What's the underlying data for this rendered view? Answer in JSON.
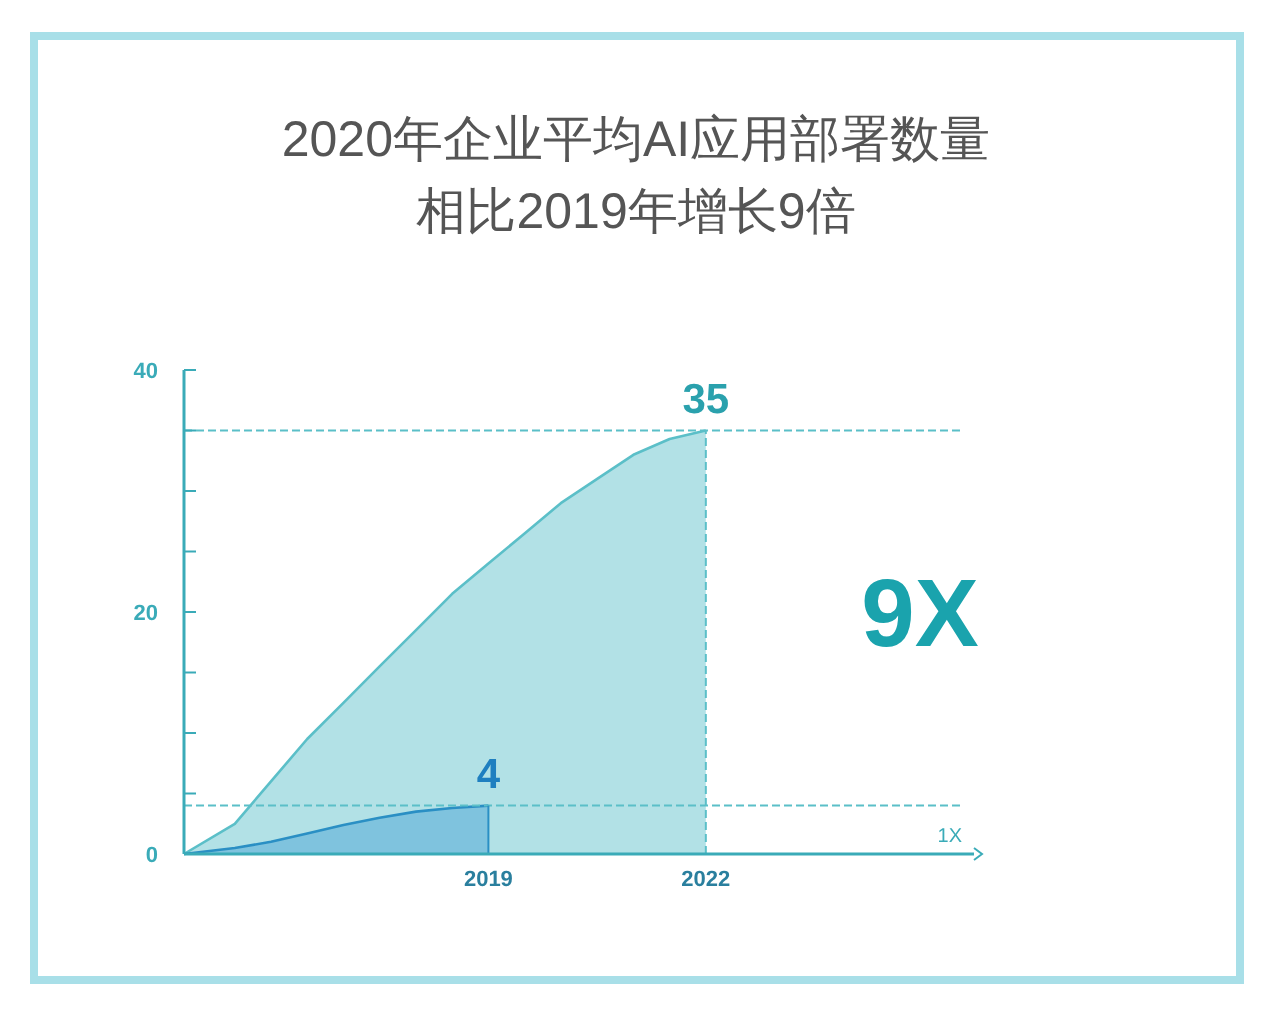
{
  "chart_data": {
    "type": "area",
    "title": "2020年企业平均AI应用部署数量",
    "subtitle": "相比2019年增长9倍",
    "xlim": [
      2014.8,
      2025.7
    ],
    "xticks": [
      2019,
      2022
    ],
    "ylim": [
      0,
      40
    ],
    "yticks": [
      0,
      {
        "value": 5,
        "label": null
      },
      {
        "value": 10,
        "label": null
      },
      {
        "value": 15,
        "label": null
      },
      20,
      {
        "value": 25,
        "label": null
      },
      {
        "value": 30,
        "label": null
      },
      {
        "value": 35,
        "label": null
      },
      40
    ],
    "series": [
      {
        "color": "#5bbfc8",
        "x": [
          2014.8,
          2015.5,
          2016,
          2016.5,
          2017,
          2017.5,
          2018,
          2018.5,
          2019,
          2019.5,
          2020,
          2020.5,
          2021,
          2021.5,
          2022
        ],
        "values": [
          0,
          2.5,
          6,
          9.5,
          12.5,
          15.5,
          18.5,
          21.5,
          24,
          26.5,
          29,
          31,
          33,
          34.3,
          35
        ]
      },
      {
        "color": "#2a8fc4",
        "x": [
          2014.8,
          2015.5,
          2016,
          2016.5,
          2017,
          2017.5,
          2018,
          2018.5,
          2019
        ],
        "values": [
          0,
          0.5,
          1,
          1.7,
          2.4,
          3,
          3.5,
          3.8,
          4
        ]
      }
    ],
    "ref_lines": [
      {
        "axis": "y",
        "value": 35,
        "line_style": "dashed",
        "color": "#5bbfc8"
      },
      {
        "axis": "y",
        "value": 4,
        "line_style": "dashed",
        "color": "#5bbfc8"
      },
      {
        "axis": "x",
        "value": 2019,
        "line_style": "solid",
        "color": "#2a8fc4"
      },
      {
        "axis": "x",
        "value": 2022,
        "line_style": "dashed",
        "color": "#5bbfc8"
      }
    ],
    "annotations": [
      {
        "text": "35",
        "x": 2022,
        "y": 35
      },
      {
        "text": "4",
        "x": 2019,
        "y": 4
      },
      "9X",
      "1X"
    ]
  }
}
